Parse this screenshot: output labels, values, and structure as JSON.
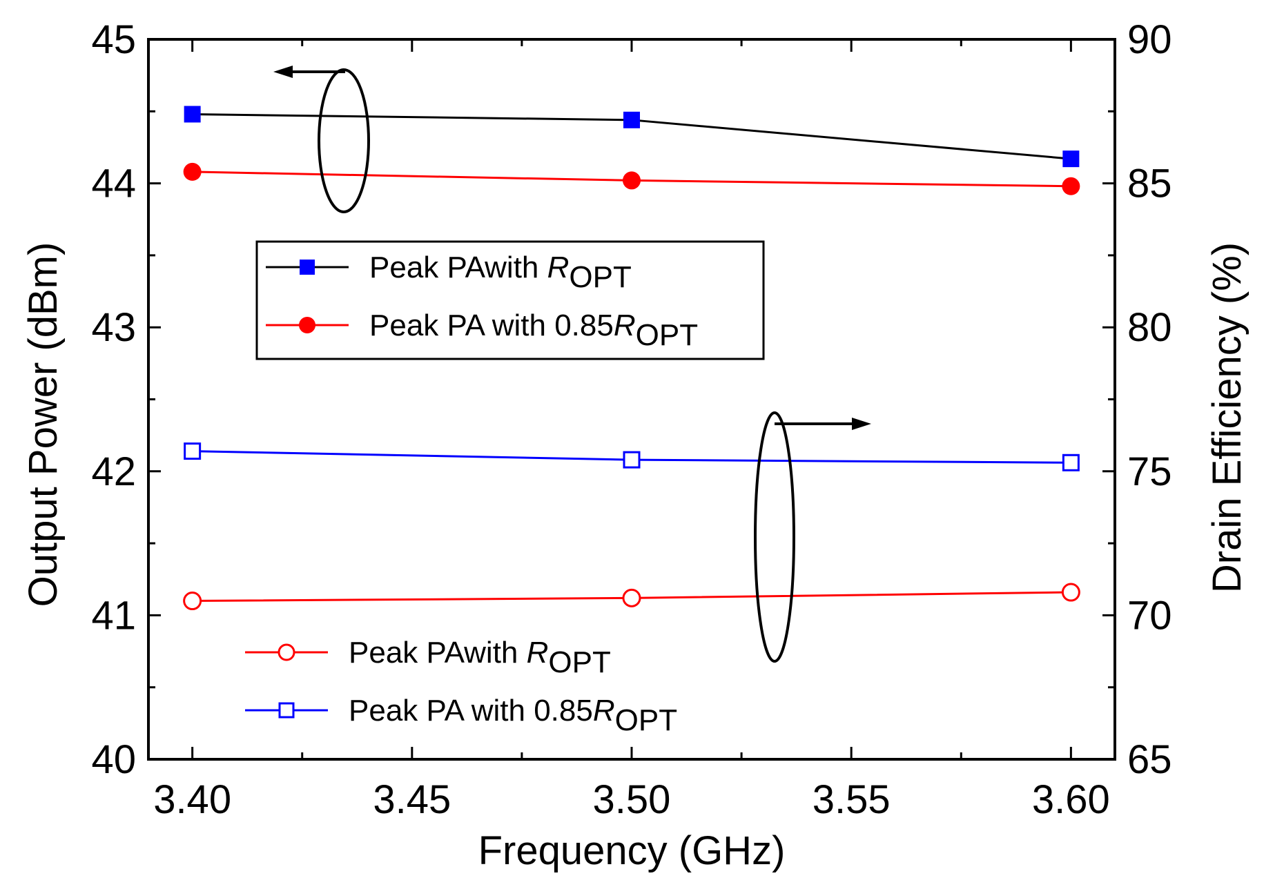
{
  "chart_data": {
    "type": "line",
    "xlabel": "Frequency (GHz)",
    "ylabel_left": "Output Power (dBm)",
    "ylabel_right": "Drain Efficiency (%)",
    "xlim": [
      3.39,
      3.61
    ],
    "ylim_left": [
      40,
      45
    ],
    "ylim_right": [
      65,
      90
    ],
    "x_ticks": [
      3.4,
      3.45,
      3.5,
      3.55,
      3.6
    ],
    "x_tick_labels": [
      "3.40",
      "3.45",
      "3.50",
      "3.55",
      "3.60"
    ],
    "y_left_ticks": [
      40,
      41,
      42,
      43,
      44,
      45
    ],
    "y_right_ticks": [
      65,
      70,
      75,
      80,
      85,
      90
    ],
    "x": [
      3.4,
      3.5,
      3.6
    ],
    "series": [
      {
        "name": "Peak PAwith R",
        "sub": "OPT",
        "axis": "left",
        "values": [
          44.48,
          44.44,
          44.17
        ],
        "color": "#0000ff",
        "line_color": "#000000",
        "marker": "square-filled"
      },
      {
        "name": "Peak PA with 0.85R",
        "sub": "OPT",
        "axis": "left",
        "values": [
          44.08,
          44.02,
          43.98
        ],
        "color": "#ff0000",
        "line_color": "#ff0000",
        "marker": "circle-filled"
      },
      {
        "name": "Peak PAwith R",
        "sub": "OPT",
        "axis": "right",
        "values": [
          70.5,
          70.6,
          70.8
        ],
        "color": "#ff0000",
        "line_color": "#ff0000",
        "marker": "circle-open"
      },
      {
        "name": "Peak PA with 0.85R",
        "sub": "OPT",
        "axis": "right",
        "values": [
          75.7,
          75.4,
          75.3
        ],
        "color": "#0000ff",
        "line_color": "#0000ff",
        "marker": "square-open"
      }
    ],
    "legends": {
      "left_axis_box": {
        "entries": [
          0,
          1
        ],
        "bordered": true
      },
      "right_axis_box": {
        "entries": [
          2,
          3
        ],
        "bordered": false
      }
    }
  }
}
